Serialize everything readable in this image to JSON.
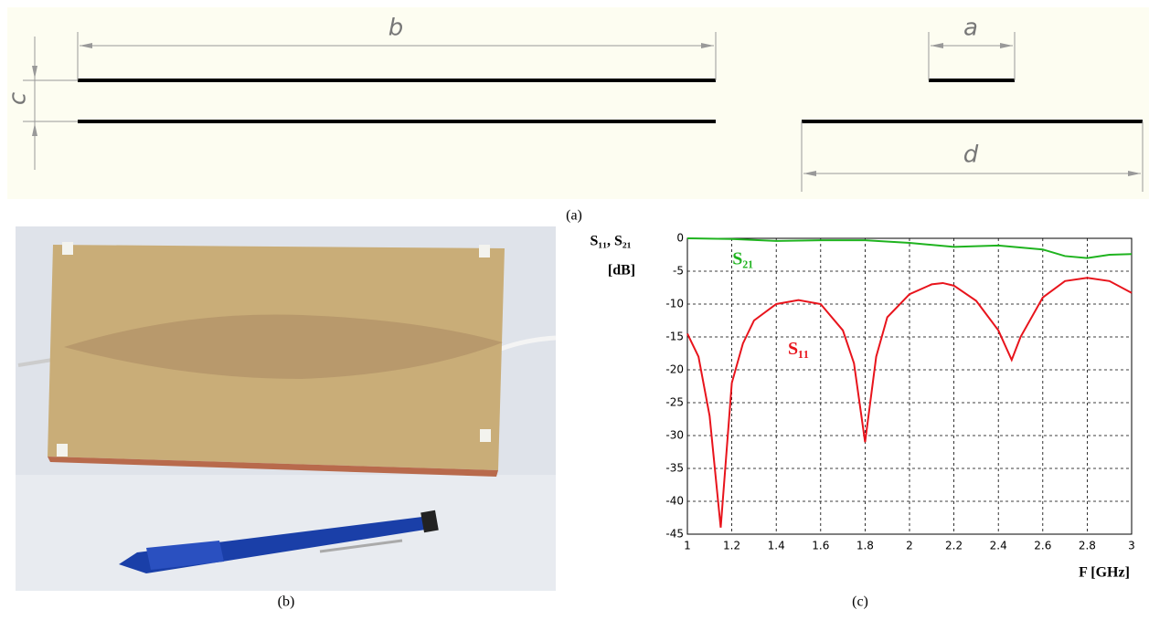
{
  "diagram": {
    "dimension_labels": [
      "b",
      "a",
      "c",
      "d"
    ],
    "caption": "(a)"
  },
  "photo": {
    "caption": "(b)"
  },
  "chart_data": {
    "type": "line",
    "caption": "(c)",
    "y_label": [
      "S₁₁, S₂₁",
      "[dB]"
    ],
    "x_label": "F [GHz]",
    "xlim": [
      1,
      3
    ],
    "xticks": [
      1,
      1.2,
      1.4,
      1.6,
      1.8,
      2,
      2.2,
      2.4,
      2.6,
      2.8,
      3
    ],
    "ylim": [
      -45,
      0
    ],
    "yticks": [
      0,
      -5,
      -10,
      -15,
      -20,
      -25,
      -30,
      -35,
      -40,
      -45
    ],
    "grid": true,
    "series": [
      {
        "name": "S₁₁",
        "color": "#e8141c",
        "x": [
          1,
          1.05,
          1.1,
          1.15,
          1.2,
          1.25,
          1.3,
          1.4,
          1.5,
          1.6,
          1.7,
          1.75,
          1.8,
          1.85,
          1.9,
          2,
          2.1,
          2.15,
          2.2,
          2.3,
          2.4,
          2.46,
          2.5,
          2.6,
          2.7,
          2.8,
          2.9,
          3
        ],
        "values": [
          -14.5,
          -18,
          -27,
          -44,
          -22,
          -16,
          -12.5,
          -10,
          -9.4,
          -10,
          -14,
          -19,
          -31,
          -18,
          -12,
          -8.5,
          -7,
          -6.8,
          -7.2,
          -9.5,
          -14,
          -18.5,
          -15,
          -9,
          -6.5,
          -6,
          -6.5,
          -8.3
        ]
      },
      {
        "name": "S₂₁",
        "color": "#1fb31f",
        "x": [
          1,
          1.2,
          1.4,
          1.6,
          1.8,
          2,
          2.2,
          2.4,
          2.6,
          2.7,
          2.8,
          2.9,
          3
        ],
        "values": [
          0,
          -0.1,
          -0.4,
          -0.3,
          -0.3,
          -0.7,
          -1.3,
          -1.1,
          -1.7,
          -2.7,
          -3,
          -2.5,
          -2.4
        ]
      }
    ]
  }
}
